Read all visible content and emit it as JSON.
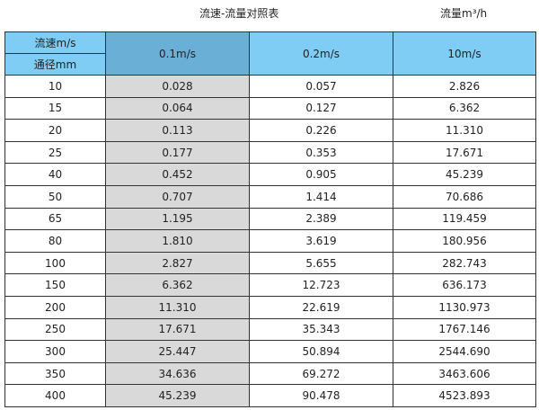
{
  "title": "流速-流量对照表",
  "unit_label": "流量m³/h",
  "colors": {
    "header": "#7fcdf4",
    "header_selected": "#6ab0d6",
    "highlight_column": "#d9d9d9"
  },
  "header": {
    "velocity_label": "流速m/s",
    "diameter_label": "通径mm",
    "columns": [
      "0.1m/s",
      "0.2m/s",
      "10m/s"
    ]
  },
  "rows": [
    [
      "10",
      "0.028",
      "0.057",
      "2.826"
    ],
    [
      "15",
      "0.064",
      "0.127",
      "6.362"
    ],
    [
      "20",
      "0.113",
      "0.226",
      "11.310"
    ],
    [
      "25",
      "0.177",
      "0.353",
      "17.671"
    ],
    [
      "40",
      "0.452",
      "0.905",
      "45.239"
    ],
    [
      "50",
      "0.707",
      "1.414",
      "70.686"
    ],
    [
      "65",
      "1.195",
      "2.389",
      "119.459"
    ],
    [
      "80",
      "1.810",
      "3.619",
      "180.956"
    ],
    [
      "100",
      "2.827",
      "5.655",
      "282.743"
    ],
    [
      "150",
      "6.362",
      "12.723",
      "636.173"
    ],
    [
      "200",
      "11.310",
      "22.619",
      "1130.973"
    ],
    [
      "250",
      "17.671",
      "35.343",
      "1767.146"
    ],
    [
      "300",
      "25.447",
      "50.894",
      "2544.690"
    ],
    [
      "350",
      "34.636",
      "69.272",
      "3463.606"
    ],
    [
      "400",
      "45.239",
      "90.478",
      "4523.893"
    ]
  ]
}
